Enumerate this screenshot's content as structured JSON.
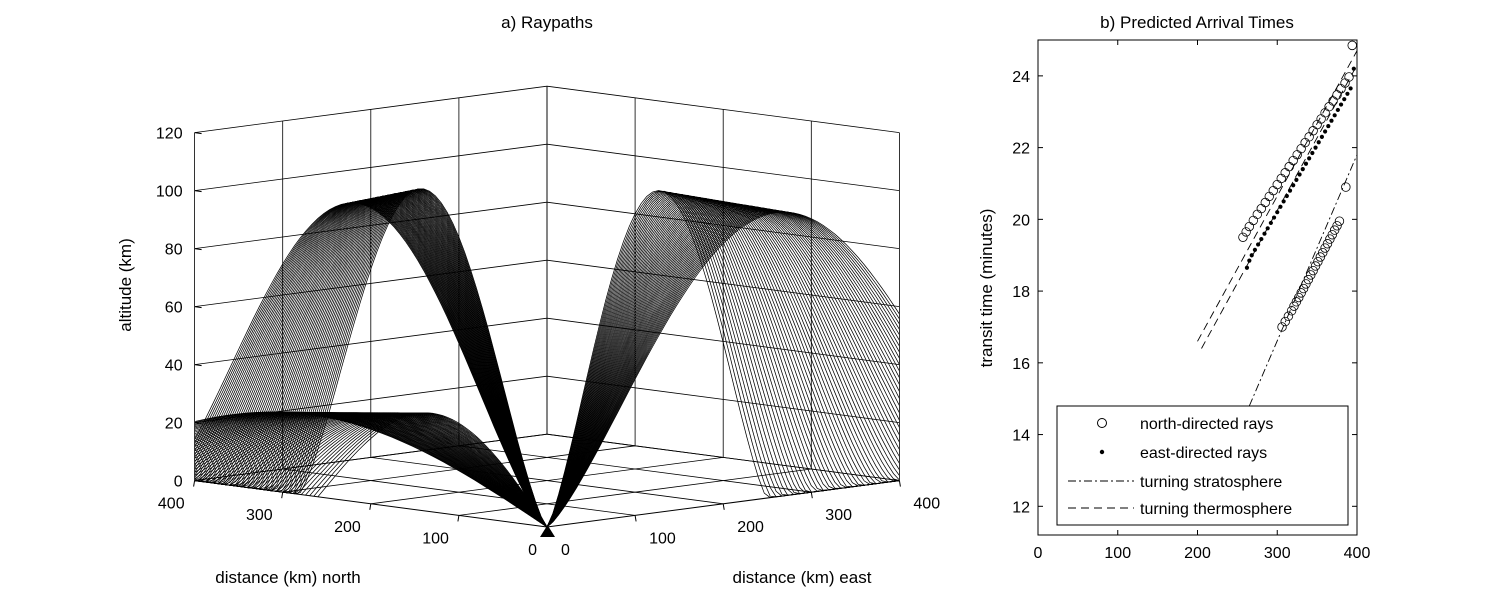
{
  "chart_data": [
    {
      "panel": "a",
      "type": "line",
      "title": "a) Raypaths",
      "zlabel": "altitude (km)",
      "xlabel": "distance (km) north",
      "ylabel": "distance (km) east",
      "zlim": [
        0,
        120
      ],
      "ztick_labels": [
        "0",
        "20",
        "40",
        "60",
        "80",
        "100",
        "120"
      ],
      "north_tick_labels": [
        "0",
        "100",
        "200",
        "300",
        "400"
      ],
      "east_tick_labels": [
        "0",
        "100",
        "200",
        "300",
        "400"
      ],
      "grid": true,
      "color": "#000000",
      "source_icon": "triangle-source-icon",
      "series": [
        {
          "direction": "north",
          "ray_count": 60,
          "stratospheric_turn_altitude_km": 32,
          "thermospheric_turn_altitude_km": [
            103,
            111
          ],
          "stratospheric_range_km": [
            0,
            275
          ],
          "thermospheric_range_km": [
            285,
            400
          ]
        },
        {
          "direction": "east",
          "ray_count": 60,
          "thermospheric_turn_altitude_km": [
            98,
            111
          ],
          "thermospheric_range_km": [
            240,
            400
          ]
        }
      ]
    },
    {
      "panel": "b",
      "type": "scatter",
      "title": "b) Predicted Arrival Times",
      "xlabel": "",
      "ylabel": "transit time (minutes)",
      "xlim": [
        0,
        400
      ],
      "ylim": [
        11.2,
        25
      ],
      "x_tick_labels": [
        "0",
        "100",
        "200",
        "300",
        "400"
      ],
      "y_tick_labels": [
        "12",
        "14",
        "16",
        "18",
        "20",
        "22",
        "24"
      ],
      "legend": "bottom-right",
      "series": [
        {
          "name": "north-directed rays",
          "marker": "circle",
          "x": [
            257,
            261,
            265,
            270,
            275,
            280,
            285,
            290,
            295,
            300,
            305,
            310,
            315,
            320,
            325,
            330,
            335,
            340,
            345,
            350,
            355,
            360,
            365,
            370,
            375,
            380,
            385,
            390,
            394,
            306,
            310,
            314,
            318,
            321,
            324,
            327,
            330,
            333,
            336,
            339,
            342,
            345,
            348,
            351,
            354,
            357,
            360,
            363,
            366,
            369,
            372,
            375,
            378,
            386
          ],
          "y": [
            19.5,
            19.65,
            19.8,
            19.97,
            20.14,
            20.3,
            20.47,
            20.64,
            20.8,
            20.97,
            21.14,
            21.3,
            21.47,
            21.64,
            21.8,
            21.97,
            22.14,
            22.3,
            22.47,
            22.64,
            22.8,
            22.97,
            23.14,
            23.3,
            23.47,
            23.64,
            23.8,
            23.97,
            24.85,
            17.0,
            17.15,
            17.3,
            17.45,
            17.58,
            17.7,
            17.82,
            17.95,
            18.07,
            18.2,
            18.32,
            18.45,
            18.57,
            18.7,
            18.82,
            18.95,
            19.07,
            19.2,
            19.32,
            19.45,
            19.57,
            19.7,
            19.82,
            19.95,
            20.9
          ]
        },
        {
          "name": "east-directed rays",
          "marker": "dot",
          "x": [
            262,
            265,
            268,
            272,
            276,
            280,
            284,
            288,
            292,
            296,
            300,
            304,
            308,
            312,
            316,
            320,
            324,
            328,
            332,
            336,
            340,
            344,
            348,
            352,
            356,
            360,
            364,
            368,
            372,
            376,
            380,
            384,
            388,
            392,
            396
          ],
          "y": [
            18.65,
            18.85,
            19.0,
            19.15,
            19.3,
            19.45,
            19.6,
            19.75,
            19.9,
            20.05,
            20.2,
            20.35,
            20.5,
            20.65,
            20.8,
            20.95,
            21.1,
            21.25,
            21.4,
            21.55,
            21.7,
            21.85,
            22.0,
            22.15,
            22.3,
            22.45,
            22.6,
            22.75,
            22.9,
            23.05,
            23.2,
            23.35,
            23.5,
            23.65,
            24.2
          ]
        },
        {
          "name": "turning stratosphere",
          "line_style": "dash-dot",
          "x": [
            265,
            400
          ],
          "y": [
            14.8,
            21.8
          ]
        },
        {
          "name": "turning thermosphere",
          "line_style": "dashed",
          "x": [
            200,
            400
          ],
          "y": [
            16.6,
            24.7
          ]
        },
        {
          "name": "",
          "line_style": "dashed",
          "x": [
            205,
            400
          ],
          "y": [
            16.4,
            24.3
          ]
        }
      ]
    }
  ]
}
